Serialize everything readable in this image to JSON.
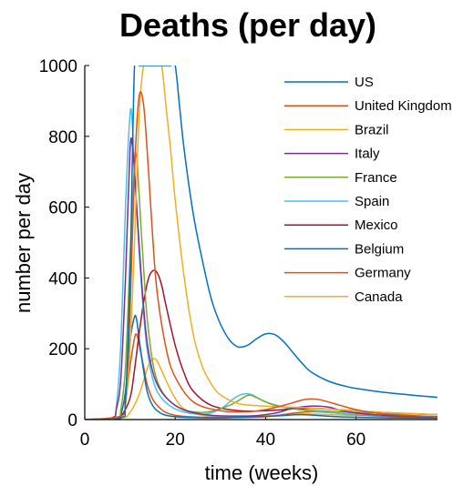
{
  "chart_data": {
    "type": "line",
    "title": "Deaths (per day)",
    "xlabel": "time (weeks)",
    "ylabel": "number per day",
    "xlim": [
      0,
      78
    ],
    "ylim": [
      0,
      1000
    ],
    "xticks": [
      0,
      20,
      40,
      60
    ],
    "yticks": [
      0,
      200,
      400,
      600,
      800,
      1000
    ],
    "grid": false,
    "legend_position": "top-right",
    "series": [
      {
        "name": "US",
        "color": "#0072BD",
        "points": [
          [
            0,
            0
          ],
          [
            8,
            5
          ],
          [
            9,
            60
          ],
          [
            10,
            400
          ],
          [
            11,
            1000
          ],
          [
            12,
            1000
          ],
          [
            13,
            1000
          ],
          [
            14,
            1000
          ],
          [
            15,
            1000
          ],
          [
            16,
            1000
          ],
          [
            17,
            1000
          ],
          [
            18,
            1000
          ],
          [
            19,
            1000
          ],
          [
            20,
            1000
          ],
          [
            21,
            880
          ],
          [
            22,
            760
          ],
          [
            24,
            580
          ],
          [
            26,
            450
          ],
          [
            28,
            340
          ],
          [
            30,
            270
          ],
          [
            32,
            225
          ],
          [
            34,
            205
          ],
          [
            36,
            210
          ],
          [
            38,
            228
          ],
          [
            40,
            242
          ],
          [
            42,
            240
          ],
          [
            44,
            220
          ],
          [
            46,
            190
          ],
          [
            48,
            160
          ],
          [
            50,
            135
          ],
          [
            54,
            108
          ],
          [
            58,
            93
          ],
          [
            62,
            84
          ],
          [
            66,
            77
          ],
          [
            70,
            72
          ],
          [
            74,
            67
          ],
          [
            78,
            63
          ]
        ]
      },
      {
        "name": "United Kingdom",
        "color": "#D95319",
        "points": [
          [
            0,
            0
          ],
          [
            8,
            10
          ],
          [
            9,
            60
          ],
          [
            10,
            300
          ],
          [
            11,
            700
          ],
          [
            12,
            910
          ],
          [
            13,
            890
          ],
          [
            14,
            720
          ],
          [
            15,
            520
          ],
          [
            16,
            360
          ],
          [
            18,
            200
          ],
          [
            20,
            120
          ],
          [
            24,
            50
          ],
          [
            30,
            25
          ],
          [
            36,
            22
          ],
          [
            40,
            28
          ],
          [
            44,
            40
          ],
          [
            48,
            55
          ],
          [
            50,
            58
          ],
          [
            52,
            56
          ],
          [
            56,
            42
          ],
          [
            60,
            28
          ],
          [
            66,
            16
          ],
          [
            78,
            8
          ]
        ]
      },
      {
        "name": "Brazil",
        "color": "#EDB120",
        "points": [
          [
            0,
            0
          ],
          [
            8,
            4
          ],
          [
            9,
            40
          ],
          [
            10,
            200
          ],
          [
            11,
            500
          ],
          [
            12,
            850
          ],
          [
            13,
            1000
          ],
          [
            14,
            1000
          ],
          [
            15,
            1000
          ],
          [
            16,
            1000
          ],
          [
            17,
            1000
          ],
          [
            18,
            880
          ],
          [
            19,
            760
          ],
          [
            20,
            620
          ],
          [
            22,
            400
          ],
          [
            24,
            240
          ],
          [
            26,
            150
          ],
          [
            28,
            100
          ],
          [
            30,
            70
          ],
          [
            34,
            45
          ],
          [
            40,
            38
          ],
          [
            46,
            35
          ],
          [
            50,
            33
          ],
          [
            56,
            28
          ],
          [
            66,
            20
          ],
          [
            78,
            14
          ]
        ]
      },
      {
        "name": "Italy",
        "color": "#7E2F8E",
        "points": [
          [
            0,
            0
          ],
          [
            6,
            5
          ],
          [
            7,
            30
          ],
          [
            8,
            120
          ],
          [
            9,
            400
          ],
          [
            10,
            760
          ],
          [
            10.5,
            775
          ],
          [
            11,
            700
          ],
          [
            12,
            500
          ],
          [
            13,
            320
          ],
          [
            14,
            200
          ],
          [
            16,
            100
          ],
          [
            20,
            40
          ],
          [
            26,
            15
          ],
          [
            36,
            10
          ],
          [
            42,
            18
          ],
          [
            46,
            32
          ],
          [
            50,
            38
          ],
          [
            54,
            35
          ],
          [
            58,
            22
          ],
          [
            66,
            12
          ],
          [
            78,
            8
          ]
        ]
      },
      {
        "name": "France",
        "color": "#77AC30",
        "points": [
          [
            0,
            0
          ],
          [
            7,
            5
          ],
          [
            8,
            30
          ],
          [
            9,
            150
          ],
          [
            10,
            450
          ],
          [
            11,
            720
          ],
          [
            11.5,
            740
          ],
          [
            12,
            640
          ],
          [
            13,
            430
          ],
          [
            14,
            260
          ],
          [
            16,
            110
          ],
          [
            20,
            40
          ],
          [
            26,
            20
          ],
          [
            32,
            40
          ],
          [
            36,
            68
          ],
          [
            38,
            62
          ],
          [
            42,
            40
          ],
          [
            48,
            28
          ],
          [
            56,
            22
          ],
          [
            66,
            18
          ],
          [
            78,
            14
          ]
        ]
      },
      {
        "name": "Spain",
        "color": "#4DBEEE",
        "points": [
          [
            0,
            0
          ],
          [
            6,
            5
          ],
          [
            7,
            40
          ],
          [
            8,
            220
          ],
          [
            9,
            600
          ],
          [
            10,
            860
          ],
          [
            10.5,
            840
          ],
          [
            11,
            700
          ],
          [
            12,
            480
          ],
          [
            13,
            300
          ],
          [
            14,
            180
          ],
          [
            16,
            80
          ],
          [
            20,
            30
          ],
          [
            26,
            15
          ],
          [
            30,
            30
          ],
          [
            33,
            60
          ],
          [
            35,
            72
          ],
          [
            37,
            70
          ],
          [
            40,
            50
          ],
          [
            46,
            30
          ],
          [
            56,
            18
          ],
          [
            66,
            12
          ],
          [
            78,
            8
          ]
        ]
      },
      {
        "name": "Mexico",
        "color": "#A2142F",
        "points": [
          [
            0,
            0
          ],
          [
            6,
            2
          ],
          [
            8,
            10
          ],
          [
            10,
            60
          ],
          [
            11,
            140
          ],
          [
            12,
            240
          ],
          [
            13,
            330
          ],
          [
            14,
            395
          ],
          [
            15,
            420
          ],
          [
            16,
            415
          ],
          [
            17,
            380
          ],
          [
            18,
            320
          ],
          [
            20,
            210
          ],
          [
            22,
            130
          ],
          [
            24,
            80
          ],
          [
            28,
            40
          ],
          [
            34,
            25
          ],
          [
            40,
            25
          ],
          [
            46,
            30
          ],
          [
            50,
            32
          ],
          [
            56,
            28
          ],
          [
            66,
            20
          ],
          [
            78,
            14
          ]
        ]
      },
      {
        "name": "Belgium",
        "color": "#0072BD",
        "points": [
          [
            0,
            0
          ],
          [
            7,
            3
          ],
          [
            8,
            15
          ],
          [
            9,
            80
          ],
          [
            10,
            220
          ],
          [
            11,
            290
          ],
          [
            11.5,
            280
          ],
          [
            12,
            230
          ],
          [
            13,
            140
          ],
          [
            14,
            70
          ],
          [
            16,
            25
          ],
          [
            20,
            8
          ],
          [
            30,
            5
          ],
          [
            42,
            10
          ],
          [
            48,
            14
          ],
          [
            56,
            8
          ],
          [
            66,
            5
          ],
          [
            78,
            4
          ]
        ]
      },
      {
        "name": "Germany",
        "color": "#D95319",
        "points": [
          [
            0,
            0
          ],
          [
            8,
            10
          ],
          [
            9,
            50
          ],
          [
            10,
            150
          ],
          [
            11,
            230
          ],
          [
            11.5,
            240
          ],
          [
            12,
            215
          ],
          [
            13,
            150
          ],
          [
            14,
            90
          ],
          [
            16,
            40
          ],
          [
            20,
            12
          ],
          [
            30,
            6
          ],
          [
            40,
            8
          ],
          [
            46,
            18
          ],
          [
            50,
            22
          ],
          [
            54,
            20
          ],
          [
            60,
            14
          ],
          [
            70,
            8
          ],
          [
            78,
            6
          ]
        ]
      },
      {
        "name": "Canada",
        "color": "#EDB120",
        "points": [
          [
            0,
            0
          ],
          [
            8,
            4
          ],
          [
            10,
            20
          ],
          [
            12,
            70
          ],
          [
            14,
            150
          ],
          [
            15,
            170
          ],
          [
            16,
            165
          ],
          [
            18,
            110
          ],
          [
            20,
            60
          ],
          [
            22,
            30
          ],
          [
            26,
            12
          ],
          [
            34,
            8
          ],
          [
            42,
            12
          ],
          [
            48,
            16
          ],
          [
            56,
            13
          ],
          [
            66,
            9
          ],
          [
            78,
            6
          ]
        ]
      }
    ]
  }
}
